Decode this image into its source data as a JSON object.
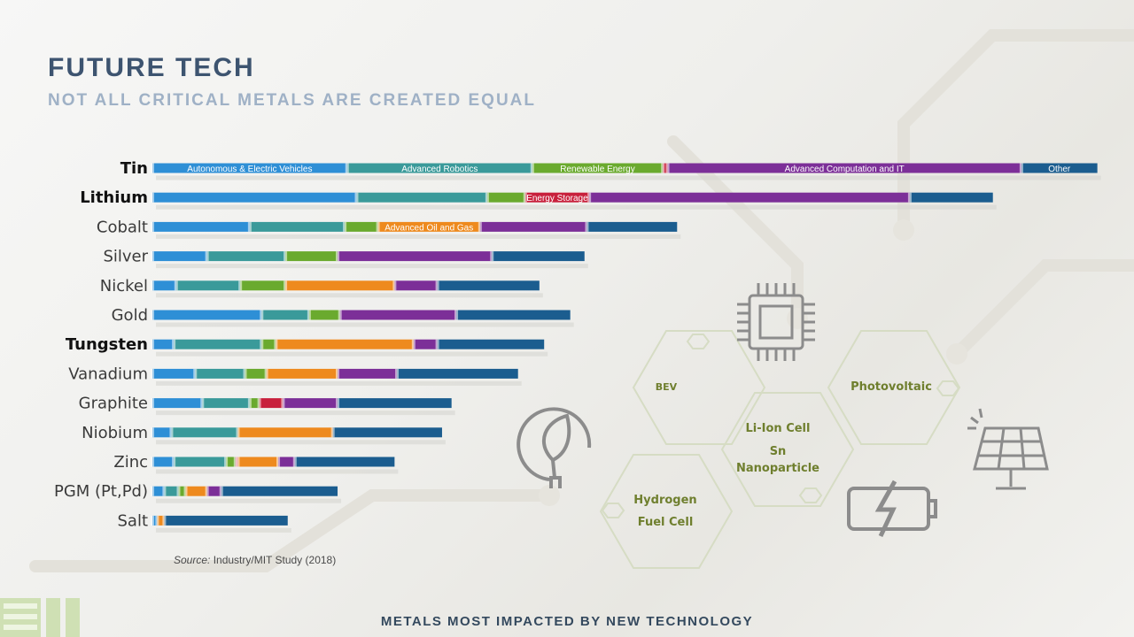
{
  "header": {
    "title": "FUTURE TECH",
    "subtitle": "NOT ALL CRITICAL METALS ARE CREATED EQUAL"
  },
  "source": {
    "prefix": "Source:",
    "text": "Industry/MIT Study (2018)"
  },
  "footer": {
    "text": "METALS MOST IMPACTED BY NEW TECHNOLOGY"
  },
  "hexagons": {
    "bev": "BEV",
    "photovoltaic": "Photovoltaic",
    "li_ion_line1": "Li-Ion Cell",
    "li_ion_line2": "Sn",
    "li_ion_line3": "Nanoparticle",
    "hydrogen_line1": "Hydrogen",
    "hydrogen_line2": "Fuel Cell"
  },
  "colors": {
    "autonomous": "#2e8fd6",
    "robotics": "#3a9a9a",
    "renewable": "#6aaa2e",
    "storage": "#c8203c",
    "oilgas": "#ee8a1e",
    "computation": "#7c2f98",
    "other": "#1b5d8f",
    "hex_text": "#6f7f2e"
  },
  "chart_data": {
    "type": "bar",
    "orientation": "horizontal",
    "stacked": true,
    "title": "",
    "xlabel": "",
    "ylabel": "",
    "categories": [
      "Tin",
      "Lithium",
      "Cobalt",
      "Silver",
      "Nickel",
      "Gold",
      "Tungsten",
      "Vanadium",
      "Graphite",
      "Niobium",
      "Zinc",
      "PGM (Pt,Pd)",
      "Salt"
    ],
    "highlighted": [
      "Tin",
      "Lithium",
      "Tungsten"
    ],
    "series": [
      {
        "name": "Autonomous & Electric Vehicles",
        "values": [
          8.2,
          8.6,
          4.1,
          2.3,
          1.0,
          4.6,
          0.9,
          1.8,
          2.1,
          0.8,
          0.9,
          0.5,
          0.2
        ]
      },
      {
        "name": "Advanced Robotics",
        "values": [
          7.8,
          5.5,
          4.0,
          3.3,
          2.7,
          2.0,
          3.7,
          2.1,
          2.0,
          2.8,
          2.2,
          0.6,
          0.0
        ]
      },
      {
        "name": "Renewable Energy",
        "values": [
          5.5,
          1.6,
          1.4,
          2.2,
          1.9,
          1.3,
          0.6,
          0.9,
          0.4,
          0.0,
          0.4,
          0.3,
          0.0
        ]
      },
      {
        "name": "Energy Storage",
        "values": [
          0.2,
          2.7,
          0.0,
          0.0,
          0.0,
          0.0,
          0.0,
          0.0,
          1.0,
          0.0,
          0.1,
          0.0,
          0.0
        ]
      },
      {
        "name": "Advanced Oil and Gas",
        "values": [
          0.0,
          0.0,
          4.3,
          0.0,
          4.6,
          0.0,
          5.8,
          3.0,
          0.0,
          4.0,
          1.7,
          0.9,
          0.3
        ]
      },
      {
        "name": "Advanced Computation and IT",
        "values": [
          14.9,
          13.5,
          4.5,
          6.5,
          1.8,
          4.9,
          1.0,
          2.5,
          2.3,
          0.0,
          0.7,
          0.6,
          0.0
        ]
      },
      {
        "name": "Other",
        "values": [
          3.2,
          3.5,
          3.8,
          3.9,
          4.3,
          4.8,
          4.5,
          5.1,
          4.8,
          4.6,
          4.2,
          4.9,
          5.2
        ]
      }
    ],
    "legend": "labels inside the Tin, Lithium and Cobalt bars",
    "grid": false,
    "xlim": [
      0,
      40
    ]
  }
}
